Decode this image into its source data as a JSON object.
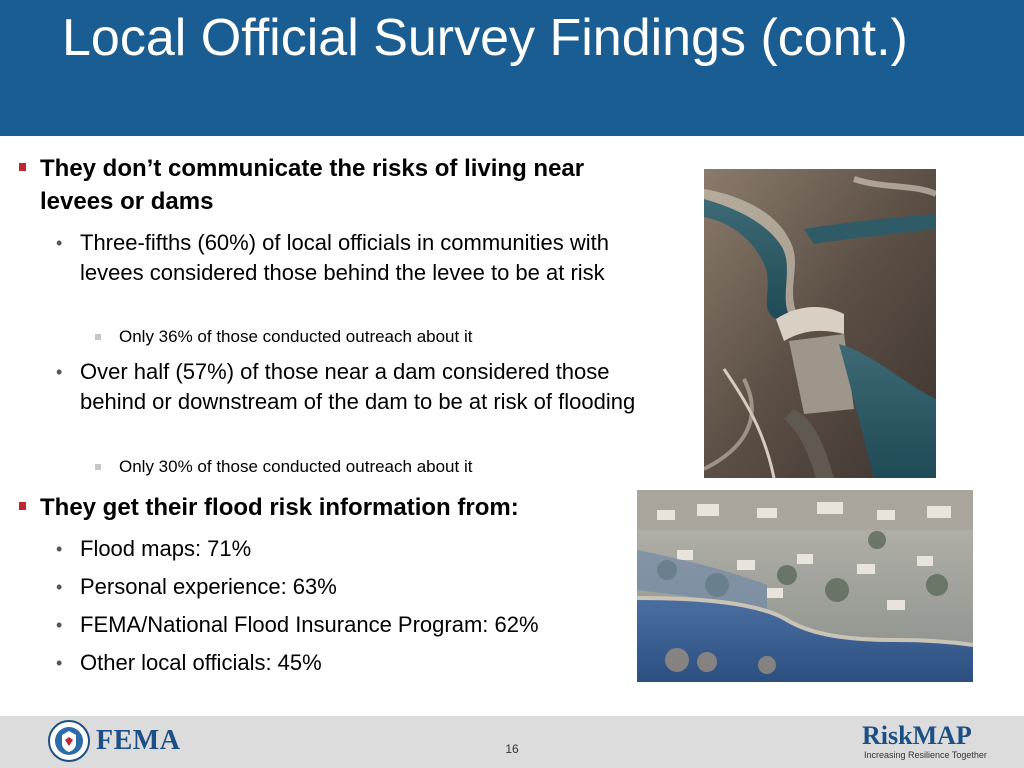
{
  "title": "Local Official Survey Findings (cont.)",
  "section1": {
    "heading": "They don’t communicate the risks of living near levees or dams",
    "points": [
      {
        "text": "Three-fifths (60%) of local officials in communities with levees considered those behind the levee to be at risk",
        "sub": "Only 36% of those conducted outreach about it"
      },
      {
        "text": "Over half (57%) of those near a dam considered those behind or downstream of the dam to be at risk of flooding",
        "sub": "Only 30% of those conducted outreach about it"
      }
    ]
  },
  "section2": {
    "heading": "They get their flood risk information from:",
    "points": [
      "Flood maps: 71%",
      "Personal experience: 63%",
      "FEMA/National Flood Insurance Program: 62%",
      "Other local officials: 45%"
    ]
  },
  "footer": {
    "fema_logo": "FEMA",
    "page_number": "16",
    "riskmap_logo": "RiskMAP",
    "riskmap_tagline": "Increasing Resilience Together"
  },
  "colors": {
    "header": "#1a5d92",
    "bullet_red": "#c0272d",
    "footer": "#dcdcdc",
    "logo_blue": "#1b4f86"
  }
}
